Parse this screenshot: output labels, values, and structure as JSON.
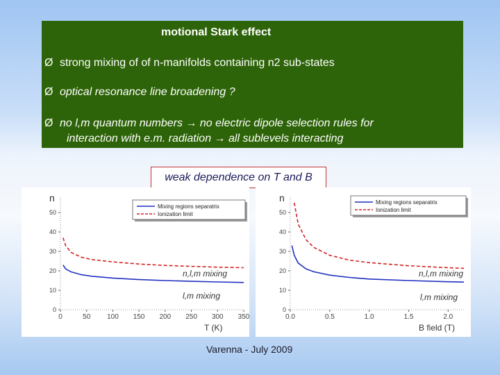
{
  "slide": {
    "title": "motional Stark effect",
    "bullets": [
      {
        "arrow": "Ø",
        "text": "strong mixing of of n-manifolds containing n2 sub-states"
      },
      {
        "arrow": "Ø",
        "text": "optical resonance line broadening ?"
      },
      {
        "arrow": "Ø",
        "line1": "no l,m quantum numbers → no electric dipole selection rules for",
        "line2": "interaction with e.m. radiation → all  sublevels interacting"
      }
    ],
    "highlight": "weak dependence on T and B",
    "footer": "Varenna - July 2009"
  },
  "chart_data": [
    {
      "type": "line",
      "ylabel": "n",
      "xlabel": "T (K)",
      "xlim": [
        0,
        350
      ],
      "ylim": [
        0,
        55
      ],
      "xticks": [
        "0",
        "50",
        "100",
        "150",
        "200",
        "250",
        "300",
        "350"
      ],
      "yticks": [
        "0",
        "10",
        "20",
        "30",
        "40",
        "50"
      ],
      "legend": [
        "Mixing regions separatrix",
        "Ionization limit"
      ],
      "series": [
        {
          "name": "Mixing regions separatrix",
          "color": "#1f2fbf",
          "style": "solid",
          "x": [
            5,
            10,
            20,
            40,
            60,
            100,
            150,
            200,
            250,
            300,
            350
          ],
          "y": [
            23,
            21,
            19.5,
            18,
            17.2,
            16.3,
            15.5,
            15.0,
            14.6,
            14.3,
            14.0
          ]
        },
        {
          "name": "Ionization limit",
          "color": "#d42020",
          "style": "dashed",
          "x": [
            5,
            10,
            20,
            40,
            60,
            100,
            150,
            200,
            250,
            300,
            350
          ],
          "y": [
            37,
            33,
            29.5,
            27,
            25.8,
            24.6,
            23.5,
            22.8,
            22.3,
            21.9,
            21.6
          ]
        }
      ],
      "annotations": [
        "n,l,m mixing",
        "l,m mixing"
      ]
    },
    {
      "type": "line",
      "ylabel": "n",
      "xlabel": "B field (T)",
      "xlim": [
        0,
        2.2
      ],
      "ylim": [
        0,
        55
      ],
      "xticks": [
        "0.0",
        "0.5",
        "1.0",
        "1.5",
        "2.0"
      ],
      "yticks": [
        "0",
        "10",
        "20",
        "30",
        "40",
        "50"
      ],
      "legend": [
        "Mixing regions separatrix",
        "Ionization limit"
      ],
      "series": [
        {
          "name": "Mixing regions separatrix",
          "color": "#1f2fbf",
          "style": "solid",
          "x": [
            0.02,
            0.05,
            0.1,
            0.2,
            0.3,
            0.5,
            0.75,
            1.0,
            1.5,
            2.0,
            2.2
          ],
          "y": [
            33,
            28,
            24,
            21,
            19.5,
            17.8,
            16.6,
            15.8,
            15.0,
            14.4,
            14.2
          ]
        },
        {
          "name": "Ionization limit",
          "color": "#d42020",
          "style": "dashed",
          "x": [
            0.05,
            0.1,
            0.2,
            0.3,
            0.5,
            0.75,
            1.0,
            1.5,
            2.0,
            2.2
          ],
          "y": [
            55,
            44,
            36,
            32,
            28,
            25.5,
            24.2,
            22.6,
            21.6,
            21.3
          ]
        }
      ],
      "annotations": [
        "n,l,m mixing",
        "l,m mixing"
      ]
    }
  ]
}
